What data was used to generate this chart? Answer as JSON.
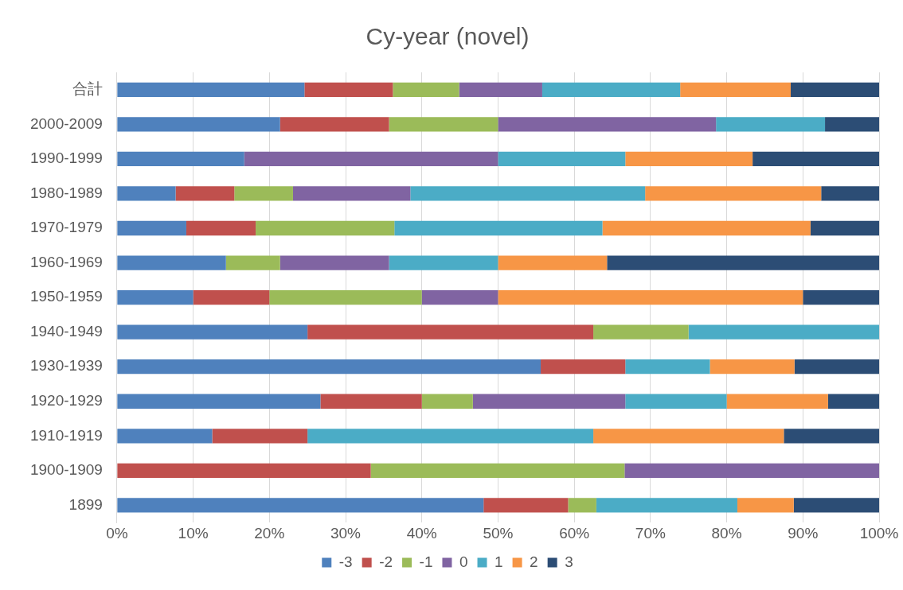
{
  "chart_data": {
    "type": "bar",
    "title": "Cy-year (novel)",
    "orientation": "horizontal",
    "stacked": true,
    "grid": "x",
    "legend": "bottom",
    "categories": [
      "合計",
      "2000-2009",
      "1990-1999",
      "1980-1989",
      "1970-1979",
      "1960-1969",
      "1950-1959",
      "1940-1949",
      "1930-1939",
      "1920-1929",
      "1910-1919",
      "1900-1909",
      "1899"
    ],
    "xlim": [
      0,
      100
    ],
    "xticks": [
      {
        "value": 0,
        "label": "0%"
      },
      {
        "value": 10,
        "label": "10%"
      },
      {
        "value": 20,
        "label": "20%"
      },
      {
        "value": 30,
        "label": "30%"
      },
      {
        "value": 40,
        "label": "40%"
      },
      {
        "value": 50,
        "label": "50%"
      },
      {
        "value": 60,
        "label": "60%"
      },
      {
        "value": 70,
        "label": "70%"
      },
      {
        "value": 80,
        "label": "80%"
      },
      {
        "value": 90,
        "label": "90%"
      },
      {
        "value": 100,
        "label": "100%"
      }
    ],
    "series": [
      {
        "name": "-3",
        "color": "#4f81bd",
        "values": [
          24.6,
          21.4,
          16.7,
          7.7,
          9.1,
          14.3,
          10,
          25,
          55.6,
          26.7,
          12.5,
          0,
          48.1
        ]
      },
      {
        "name": "-2",
        "color": "#c0504d",
        "values": [
          11.6,
          14.3,
          0,
          7.7,
          9.1,
          0,
          10,
          37.5,
          11.1,
          13.3,
          12.5,
          33.3,
          11.1
        ]
      },
      {
        "name": "-1",
        "color": "#9bbb59",
        "values": [
          8.7,
          14.3,
          0,
          7.7,
          18.2,
          7.1,
          20,
          12.5,
          0,
          6.7,
          0,
          33.3,
          3.7
        ]
      },
      {
        "name": "0",
        "color": "#8064a2",
        "values": [
          10.9,
          28.6,
          33.3,
          15.4,
          0,
          14.3,
          10,
          0,
          0,
          20,
          0,
          33.4,
          0
        ]
      },
      {
        "name": "1",
        "color": "#4bacc6",
        "values": [
          18.1,
          14.3,
          16.7,
          30.8,
          27.3,
          14.3,
          0,
          25,
          11.1,
          13.3,
          37.5,
          0,
          18.5
        ]
      },
      {
        "name": "2",
        "color": "#f79646",
        "values": [
          14.5,
          0,
          16.7,
          23.1,
          27.3,
          14.3,
          40,
          0,
          11.1,
          13.3,
          25,
          0,
          7.4
        ]
      },
      {
        "name": "3",
        "color": "#2c4d75",
        "values": [
          11.6,
          7.1,
          16.6,
          7.6,
          9.0,
          35.7,
          10,
          0,
          11.1,
          6.7,
          12.5,
          0,
          11.2
        ]
      }
    ]
  }
}
